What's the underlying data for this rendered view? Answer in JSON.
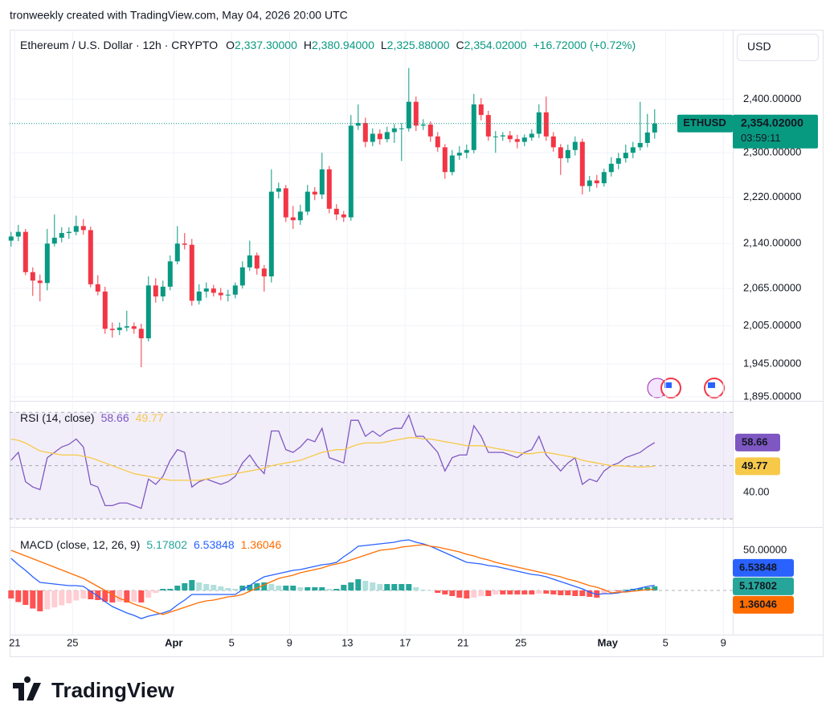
{
  "attribution": "tronweekly created with TradingView.com, May 04, 2026 20:00 UTC",
  "brand": "TradingView",
  "chart_data": [
    {
      "type": "candlestick",
      "title": "Ethereum / U.S. Dollar · 12h · CRYPTO",
      "ohlc_legend": [
        {
          "key": "O",
          "text": "2,337.30000"
        },
        {
          "key": "H",
          "text": "2,380.94000"
        },
        {
          "key": "L",
          "text": "2,325.88000"
        },
        {
          "key": "C",
          "text": "2,354.02000"
        }
      ],
      "change": "+16.72000 (+0.72%)",
      "currency": "USD",
      "symbol": "ETHUSD",
      "price_text": "2,354.02000",
      "countdown": "03:59:11",
      "up_color": "#089981",
      "down_color": "#f23645",
      "log_scale": true,
      "grid": true,
      "ylim": [
        1890,
        2536
      ],
      "yticks": [
        {
          "value": 2400,
          "label": "2,400.00000"
        },
        {
          "value": 2300,
          "label": "2,300.00000"
        },
        {
          "value": 2220,
          "label": "2,220.00000"
        },
        {
          "value": 2140,
          "label": "2,140.00000"
        },
        {
          "value": 2065,
          "label": "2,065.00000"
        },
        {
          "value": 2005,
          "label": "2,005.00000"
        },
        {
          "value": 1945,
          "label": "1,945.00000"
        },
        {
          "value": 1895,
          "label": "1,895.00000"
        }
      ],
      "xlim": [
        -0.2,
        99.8
      ],
      "xticks": [
        {
          "value": 0.5,
          "label": "21"
        },
        {
          "value": 8.5,
          "label": "25"
        },
        {
          "value": 22.5,
          "label": "Apr"
        },
        {
          "value": 30.5,
          "label": "5"
        },
        {
          "value": 38.5,
          "label": "9"
        },
        {
          "value": 46.5,
          "label": "13"
        },
        {
          "value": 54.5,
          "label": "17"
        },
        {
          "value": 62.5,
          "label": "21"
        },
        {
          "value": 70.5,
          "label": "25"
        },
        {
          "value": 82.5,
          "label": "May"
        },
        {
          "value": 90.5,
          "label": "5"
        },
        {
          "value": 98.5,
          "label": "9"
        }
      ],
      "open": [
        2145,
        2152,
        2160,
        2092,
        2078,
        2074,
        2140,
        2150,
        2158,
        2160,
        2170,
        2163,
        2072,
        2060,
        2000,
        1998,
        2002,
        2004,
        2000,
        1985,
        2070,
        2052,
        2068,
        2110,
        2140,
        2138,
        2045,
        2060,
        2065,
        2058,
        2054,
        2055,
        2070,
        2100,
        2120,
        2098,
        2085,
        2230,
        2236,
        2185,
        2180,
        2195,
        2230,
        2225,
        2270,
        2200,
        2190,
        2185,
        2350,
        2355,
        2320,
        2335,
        2325,
        2338,
        2345,
        2345,
        2395,
        2350,
        2352,
        2330,
        2310,
        2265,
        2295,
        2300,
        2305,
        2390,
        2370,
        2330,
        2330,
        2332,
        2325,
        2320,
        2328,
        2335,
        2375,
        2330,
        2310,
        2290,
        2305,
        2320,
        2240,
        2250,
        2245,
        2265,
        2280,
        2290,
        2300,
        2310,
        2318,
        2337.3
      ],
      "high": [
        2160,
        2172,
        2165,
        2100,
        2088,
        2165,
        2190,
        2168,
        2168,
        2188,
        2182,
        2169,
        2087,
        2068,
        2010,
        2010,
        2029,
        2010,
        2008,
        2085,
        2082,
        2078,
        2120,
        2170,
        2158,
        2148,
        2072,
        2075,
        2071,
        2066,
        2063,
        2075,
        2110,
        2145,
        2125,
        2104,
        2270,
        2246,
        2242,
        2205,
        2207,
        2242,
        2238,
        2300,
        2276,
        2208,
        2196,
        2370,
        2390,
        2365,
        2345,
        2343,
        2348,
        2353,
        2355,
        2460,
        2405,
        2362,
        2358,
        2338,
        2316,
        2305,
        2312,
        2315,
        2410,
        2402,
        2378,
        2340,
        2338,
        2340,
        2333,
        2334,
        2343,
        2390,
        2405,
        2338,
        2316,
        2315,
        2330,
        2326,
        2258,
        2260,
        2271,
        2292,
        2300,
        2315,
        2320,
        2395,
        2372,
        2380.94
      ],
      "low": [
        2135,
        2144,
        2087,
        2053,
        2044,
        2062,
        2135,
        2142,
        2148,
        2154,
        2155,
        2067,
        2054,
        1992,
        1986,
        1990,
        1996,
        1992,
        1940,
        1980,
        2042,
        2044,
        2062,
        2105,
        2130,
        2037,
        2039,
        2050,
        2052,
        2046,
        2044,
        2049,
        2065,
        2094,
        2088,
        2060,
        2075,
        2218,
        2177,
        2165,
        2172,
        2189,
        2215,
        2217,
        2192,
        2180,
        2177,
        2179,
        2342,
        2310,
        2312,
        2315,
        2319,
        2318,
        2285,
        2339,
        2340,
        2342,
        2320,
        2302,
        2253,
        2259,
        2287,
        2290,
        2299,
        2360,
        2322,
        2300,
        2322,
        2319,
        2308,
        2312,
        2322,
        2327,
        2322,
        2302,
        2260,
        2282,
        2295,
        2225,
        2230,
        2237,
        2239,
        2257,
        2270,
        2282,
        2290,
        2304,
        2310,
        2325.88
      ],
      "close": [
        2152,
        2160,
        2092,
        2078,
        2074,
        2140,
        2150,
        2158,
        2160,
        2170,
        2163,
        2072,
        2060,
        2000,
        1998,
        2002,
        2004,
        2000,
        1985,
        2070,
        2052,
        2068,
        2110,
        2140,
        2138,
        2045,
        2060,
        2065,
        2058,
        2054,
        2055,
        2070,
        2100,
        2120,
        2098,
        2085,
        2230,
        2236,
        2185,
        2180,
        2195,
        2230,
        2225,
        2270,
        2200,
        2190,
        2185,
        2350,
        2355,
        2320,
        2335,
        2325,
        2338,
        2345,
        2345,
        2395,
        2350,
        2352,
        2330,
        2310,
        2265,
        2295,
        2300,
        2305,
        2390,
        2370,
        2330,
        2330,
        2332,
        2325,
        2320,
        2328,
        2335,
        2375,
        2330,
        2310,
        2290,
        2305,
        2320,
        2240,
        2250,
        2245,
        2265,
        2280,
        2290,
        2300,
        2310,
        2318,
        2337.3,
        2354.02
      ]
    },
    {
      "type": "line",
      "title": "RSI (14, close)",
      "ylim": [
        27,
        74
      ],
      "yticks": [
        {
          "value": 40,
          "label": "40.00"
        }
      ],
      "levels": [
        70,
        50,
        30
      ],
      "band_color": "#7e57c2",
      "series": [
        {
          "color": "#7e57c2",
          "last_label": "58.66",
          "values": [
            52,
            55,
            44,
            42,
            41,
            53,
            55,
            57,
            58,
            60,
            57,
            43,
            42,
            35,
            35,
            36,
            36,
            35,
            34,
            45,
            43,
            46,
            52,
            56,
            55,
            42,
            44,
            45,
            44,
            43,
            44,
            46,
            51,
            54,
            50,
            47,
            63,
            63,
            56,
            55,
            57,
            60,
            59,
            64,
            53,
            52,
            51,
            67,
            67,
            61,
            63,
            61,
            63,
            64,
            64,
            69,
            61,
            61,
            58,
            55,
            48,
            53,
            54,
            54,
            65,
            61,
            55,
            55,
            55,
            54,
            53,
            55,
            56,
            61,
            54,
            51,
            48,
            51,
            53,
            43,
            45,
            44,
            48,
            50,
            51,
            53,
            54,
            55,
            57,
            58.66
          ]
        },
        {
          "color": "#f7c948",
          "last_label": "49.77",
          "values": [
            60,
            59.5,
            58.5,
            57,
            55.5,
            55,
            54.5,
            54,
            54,
            54,
            53.5,
            53,
            52,
            51,
            50,
            49,
            48,
            47,
            46.5,
            46,
            45.5,
            45,
            44.5,
            44.5,
            44.5,
            44.5,
            44.5,
            45,
            45.5,
            46,
            46.5,
            47,
            47.5,
            48,
            48.5,
            49,
            50,
            50.5,
            51,
            51.5,
            52,
            53,
            54,
            55,
            55.5,
            56,
            56,
            57,
            58,
            58.5,
            58.5,
            58.5,
            59,
            59.5,
            60,
            60.5,
            60.5,
            60,
            60,
            59.5,
            59,
            58.5,
            58,
            57.5,
            57.5,
            57.5,
            57,
            56.5,
            56,
            55.5,
            55,
            54.5,
            54.5,
            55,
            55,
            54.5,
            54,
            53.5,
            53,
            52,
            51.5,
            51,
            50.5,
            50,
            50,
            49.8,
            49.6,
            49.5,
            49.6,
            49.77
          ]
        }
      ]
    },
    {
      "type": "macd",
      "title": "MACD (close, 12, 26, 9)",
      "ylim": [
        -55,
        77
      ],
      "yticks": [
        {
          "value": 50,
          "label": "50.00000"
        }
      ],
      "levels": [
        0
      ],
      "histogram": {
        "last_label": "5.17802",
        "colors": {
          "up_rising": "#26a69a",
          "up_falling": "#b2dfdb",
          "down_falling": "#ff5252",
          "down_rising": "#ffcdd2"
        },
        "values": [
          -10,
          -14.5,
          -18,
          -22.5,
          -26,
          -23.5,
          -21,
          -18.5,
          -16,
          -12.5,
          -10,
          -11,
          -12,
          -14,
          -15,
          -14,
          -15,
          -14,
          -15,
          -9,
          -3,
          2,
          2,
          6,
          9,
          13,
          10,
          8,
          7,
          5,
          3,
          2,
          6,
          7,
          9,
          10,
          8,
          6,
          6,
          6,
          4,
          4,
          4,
          4,
          2,
          2,
          7,
          10,
          14,
          12,
          10,
          8,
          8,
          8,
          8,
          8,
          4,
          1,
          0,
          -3,
          -5,
          -7,
          -9,
          -10,
          -9,
          -7,
          -7,
          -5,
          -5,
          -5,
          -5,
          -5,
          -5,
          -4,
          -4,
          -5,
          -6,
          -6,
          -7,
          -7,
          -8,
          -9,
          -5,
          -1,
          -1,
          1,
          2,
          3,
          4,
          5.17802
        ]
      },
      "series": [
        {
          "color": "#2962ff",
          "last_label": "6.53848",
          "values": [
            40,
            32,
            25,
            17,
            10,
            9,
            8,
            7,
            6,
            6,
            5,
            -1,
            -7,
            -14,
            -20,
            -24,
            -28,
            -31,
            -35,
            -32,
            -30,
            -28,
            -25,
            -18,
            -12,
            -5,
            -5,
            -5,
            -5,
            -5,
            -5,
            -5,
            1,
            6,
            12,
            17,
            19,
            21,
            23,
            25,
            26,
            28,
            30,
            32,
            33,
            35,
            42,
            48,
            55,
            56,
            57,
            58,
            59,
            60,
            62,
            63,
            60,
            58,
            55,
            51,
            47,
            43,
            39,
            35,
            34,
            33,
            31,
            30,
            28,
            26,
            24,
            22,
            20,
            19,
            17,
            14,
            11,
            8,
            5,
            2,
            -2,
            -5,
            -4,
            -4,
            -3,
            -1,
            1,
            3,
            5,
            6.53848
          ]
        },
        {
          "color": "#ff6d00",
          "last_label": "1.36046",
          "values": [
            50,
            46.5,
            43,
            39.5,
            36,
            32.5,
            29,
            25.5,
            22,
            18.5,
            15,
            10,
            5,
            0,
            -5,
            -10,
            -13,
            -17,
            -20,
            -23,
            -27,
            -30,
            -27,
            -24,
            -21,
            -18,
            -15,
            -13,
            -12,
            -10,
            -8,
            -7,
            -5,
            -1,
            3,
            7,
            11,
            15,
            17,
            19,
            22,
            24,
            26,
            28,
            31,
            33,
            35,
            38,
            41,
            44,
            47,
            50,
            51,
            52,
            54,
            55,
            56,
            57,
            55,
            54,
            52,
            50,
            48,
            45,
            43,
            40,
            38,
            35,
            33,
            31,
            29,
            27,
            25,
            23,
            21,
            19,
            17,
            14,
            12,
            9,
            6,
            4,
            1,
            -3,
            -2,
            -2,
            -1,
            0,
            1,
            1.36046
          ]
        }
      ]
    }
  ]
}
